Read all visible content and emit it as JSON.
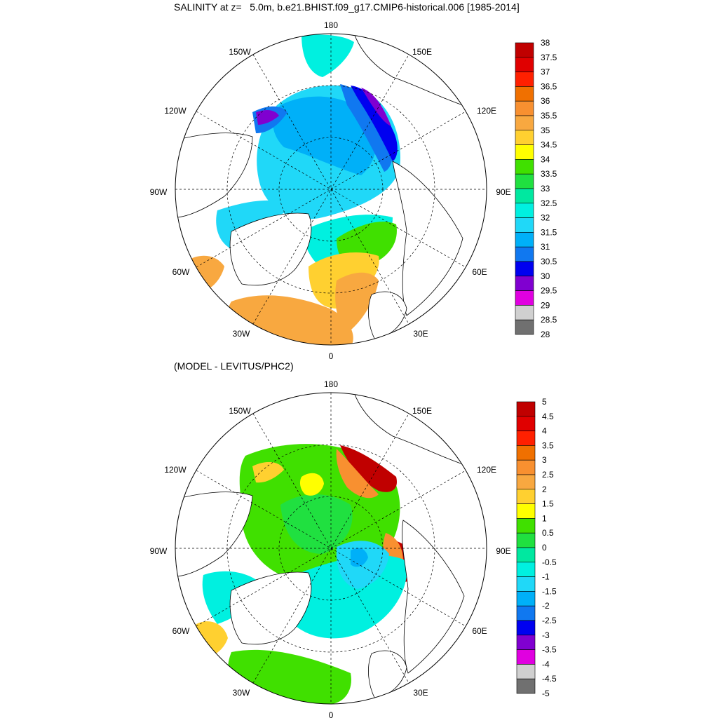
{
  "titles": {
    "top": "SALINITY at z=   5.0m, b.e21.BHIST.f09_g17.CMIP6-historical.006 [1985-2014]",
    "bottom": "(MODEL - LEVITUS/PHC2)"
  },
  "longitude_labels": [
    "180",
    "150E",
    "120E",
    "90E",
    "60E",
    "30E",
    "0",
    "30W",
    "60W",
    "90W",
    "120W",
    "150W"
  ],
  "top_map": {
    "colorbar": {
      "labels": [
        "38",
        "37.5",
        "37",
        "36.5",
        "36",
        "35.5",
        "35",
        "34.5",
        "34",
        "33.5",
        "33",
        "32.5",
        "32",
        "31.5",
        "31",
        "30.5",
        "30",
        "29.5",
        "29",
        "28.5",
        "28"
      ],
      "colors": [
        "#c00000",
        "#e00000",
        "#ff2000",
        "#f07000",
        "#f89030",
        "#f8a840",
        "#ffd030",
        "#ffff00",
        "#40e000",
        "#20e040",
        "#00e8a0",
        "#00f0e0",
        "#20d8f8",
        "#00b0f8",
        "#1078f0",
        "#0000f0",
        "#8000d0",
        "#e000e0",
        "#d0d0d0",
        "#707070"
      ]
    }
  },
  "bottom_map": {
    "colorbar": {
      "labels": [
        "5",
        "4.5",
        "4",
        "3.5",
        "3",
        "2.5",
        "2",
        "1.5",
        "1",
        "0.5",
        "0",
        "-0.5",
        "-1",
        "-1.5",
        "-2",
        "-2.5",
        "-3",
        "-3.5",
        "-4",
        "-4.5",
        "-5"
      ],
      "colors": [
        "#c00000",
        "#e00000",
        "#ff2000",
        "#f07000",
        "#f89030",
        "#f8a840",
        "#ffd030",
        "#ffff00",
        "#40e000",
        "#20e040",
        "#00e8a0",
        "#00f0e0",
        "#20d8f8",
        "#00b0f8",
        "#1078f0",
        "#0000f0",
        "#8000d0",
        "#e000e0",
        "#d0d0d0",
        "#707070"
      ]
    }
  }
}
